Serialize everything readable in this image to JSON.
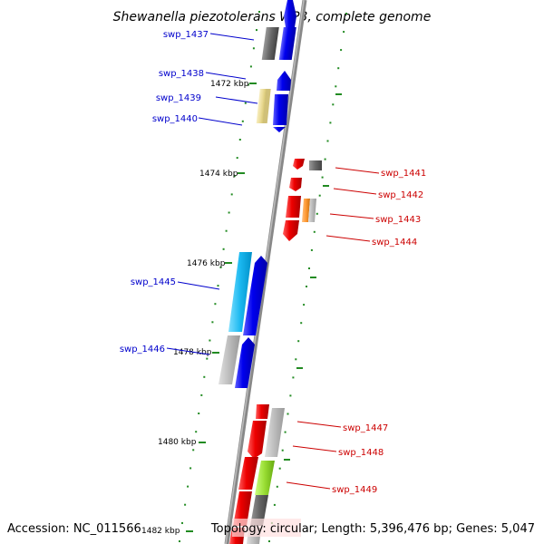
{
  "title": "Shewanella piezotolerans WP3, complete genome",
  "footer": {
    "accession": "Accession: NC_011566",
    "topology": "Topology: circular; Length: 5,396,476 bp; Genes: 5,047"
  },
  "ticks": [
    "1472 kbp",
    "1474 kbp",
    "1476 kbp",
    "1478 kbp",
    "1480 kbp",
    "1482 kbp"
  ],
  "genes_left": [
    "swp_1437",
    "swp_1438",
    "swp_1439",
    "swp_1440",
    "swp_1445",
    "swp_1446"
  ],
  "genes_right": [
    "swp_1441",
    "swp_1442",
    "swp_1443",
    "swp_1444",
    "swp_1447",
    "swp_1448",
    "swp_1449"
  ],
  "colors": {
    "forward": "#0000ee",
    "reverse": "#ee0000",
    "axis": "#888888",
    "tick": "#228b22",
    "label_blue": "#0000cc",
    "label_red": "#cc0000",
    "gray": "#777777",
    "light_gray": "#bbbbbb",
    "cyan": "#1ab8f0",
    "khaki": "#e8d890",
    "orange": "#ff9933",
    "lime": "#99dd33"
  }
}
